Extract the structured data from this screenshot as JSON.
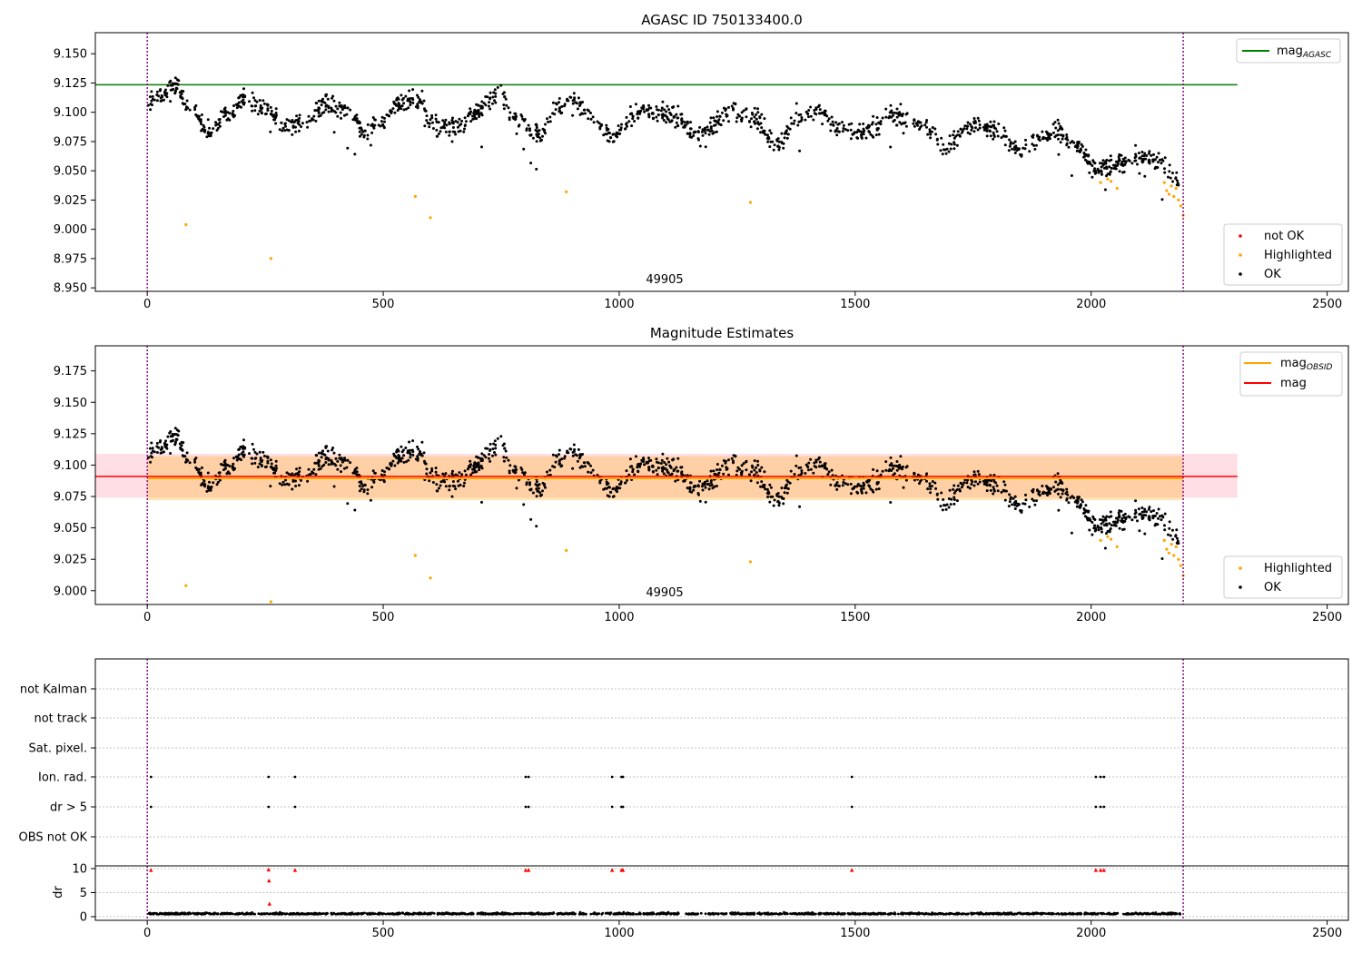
{
  "chart_data": [
    {
      "type": "scatter",
      "title": "AGASC ID 750133400.0",
      "xlim": [
        -110,
        2545
      ],
      "ylim": [
        8.947,
        9.168
      ],
      "xticks": [
        "0",
        "500",
        "1000",
        "1500",
        "2000",
        "2500"
      ],
      "yticks": [
        "9.150",
        "9.125",
        "9.100",
        "9.075",
        "9.050",
        "9.025",
        "9.000",
        "8.975",
        "8.950"
      ],
      "center_text": "49905",
      "vlines_x": [
        0,
        2195
      ],
      "hline": {
        "y": 9.1235,
        "x_range": [
          -110,
          2310
        ],
        "color": "#008000"
      },
      "legend_top": [
        {
          "label": "mag",
          "subscript": "AGASC",
          "color": "#008000",
          "marker": "line"
        }
      ],
      "legend_bottom": [
        {
          "label": "not OK",
          "color": "#ff0000",
          "marker": "dot"
        },
        {
          "label": "Highlighted",
          "color": "#ffa500",
          "marker": "dot"
        },
        {
          "label": "OK",
          "color": "#000000",
          "marker": "dot"
        }
      ],
      "series": [
        {
          "name": "OK",
          "color": "#000000",
          "trend": [
            [
              0,
              9.11
            ],
            [
              60,
              9.12
            ],
            [
              100,
              9.098
            ],
            [
              130,
              9.082
            ],
            [
              170,
              9.098
            ],
            [
              210,
              9.113
            ],
            [
              250,
              9.102
            ],
            [
              290,
              9.087
            ],
            [
              330,
              9.09
            ],
            [
              380,
              9.107
            ],
            [
              430,
              9.1
            ],
            [
              460,
              9.082
            ],
            [
              500,
              9.093
            ],
            [
              530,
              9.107
            ],
            [
              570,
              9.112
            ],
            [
              610,
              9.088
            ],
            [
              650,
              9.085
            ],
            [
              700,
              9.1
            ],
            [
              740,
              9.115
            ],
            [
              790,
              9.092
            ],
            [
              830,
              9.082
            ],
            [
              870,
              9.103
            ],
            [
              900,
              9.11
            ],
            [
              950,
              9.09
            ],
            [
              990,
              9.08
            ],
            [
              1040,
              9.1
            ],
            [
              1110,
              9.097
            ],
            [
              1170,
              9.08
            ],
            [
              1230,
              9.1
            ],
            [
              1290,
              9.095
            ],
            [
              1330,
              9.072
            ],
            [
              1380,
              9.097
            ],
            [
              1420,
              9.1
            ],
            [
              1470,
              9.086
            ],
            [
              1520,
              9.082
            ],
            [
              1580,
              9.097
            ],
            [
              1640,
              9.09
            ],
            [
              1690,
              9.07
            ],
            [
              1740,
              9.088
            ],
            [
              1800,
              9.086
            ],
            [
              1840,
              9.07
            ],
            [
              1880,
              9.075
            ],
            [
              1930,
              9.085
            ],
            [
              1970,
              9.072
            ],
            [
              2010,
              9.052
            ],
            [
              2060,
              9.057
            ],
            [
              2100,
              9.062
            ],
            [
              2140,
              9.06
            ],
            [
              2180,
              9.045
            ]
          ],
          "amplitude": 0.008,
          "n": 1500
        },
        {
          "name": "Highlighted",
          "color": "#ffa500",
          "points": [
            [
              82,
              9.004
            ],
            [
              262,
              8.975
            ],
            [
              568,
              9.028
            ],
            [
              600,
              9.01
            ],
            [
              888,
              9.032
            ],
            [
              1278,
              9.023
            ],
            [
              2020,
              9.04
            ],
            [
              2035,
              9.043
            ],
            [
              2042,
              9.041
            ],
            [
              2055,
              9.035
            ],
            [
              2155,
              9.04
            ],
            [
              2160,
              9.033
            ],
            [
              2165,
              9.03
            ],
            [
              2170,
              9.037
            ],
            [
              2175,
              9.028
            ],
            [
              2180,
              9.035
            ],
            [
              2185,
              9.025
            ],
            [
              2190,
              9.02
            ],
            [
              2195,
              9.012
            ]
          ]
        }
      ]
    },
    {
      "type": "scatter",
      "title": "Magnitude Estimates",
      "xlim": [
        -110,
        2545
      ],
      "ylim": [
        8.989,
        9.195
      ],
      "xticks": [
        "0",
        "500",
        "1000",
        "1500",
        "2000",
        "2500"
      ],
      "yticks": [
        "9.175",
        "9.150",
        "9.125",
        "9.100",
        "9.075",
        "9.050",
        "9.025",
        "9.000"
      ],
      "center_text": "49905",
      "vlines_x": [
        0,
        2195
      ],
      "band_pink": [
        9.074,
        9.109
      ],
      "band_orange": [
        9.072,
        9.107
      ],
      "hline_mag": 9.091,
      "hline_mag_obsid": 9.0895,
      "legend_top": [
        {
          "label": "mag",
          "subscript": "OBSID",
          "color": "#ffa500",
          "marker": "line"
        },
        {
          "label": "mag",
          "subscript": "",
          "color": "#ff0000",
          "marker": "line"
        }
      ],
      "legend_bottom": [
        {
          "label": "Highlighted",
          "color": "#ffa500",
          "marker": "dot"
        },
        {
          "label": "OK",
          "color": "#000000",
          "marker": "dot"
        }
      ]
    },
    {
      "type": "scatter",
      "flag_labels": [
        "not Kalman",
        "not track",
        "Sat. pixel.",
        "Ion. rad.",
        "dr > 5",
        "OBS not OK"
      ],
      "flag_events_x": {
        "Ion. rad.": [
          8,
          257,
          313,
          802,
          808,
          985,
          1005,
          1008,
          1493,
          2010,
          2020,
          2027
        ],
        "dr > 5": [
          8,
          257,
          313,
          802,
          808,
          985,
          1005,
          1008,
          1493,
          2010,
          2020,
          2027
        ]
      },
      "dr_ylabel": "dr",
      "dr_yticks": [
        "10",
        "5",
        "0"
      ],
      "dr_ylim": [
        -1,
        11
      ],
      "dr_red_points": [
        [
          8,
          9.7
        ],
        [
          257,
          9.8
        ],
        [
          258,
          7.5
        ],
        [
          259,
          2.7
        ],
        [
          313,
          9.7
        ],
        [
          802,
          9.7
        ],
        [
          808,
          9.7
        ],
        [
          985,
          9.7
        ],
        [
          1005,
          9.7
        ],
        [
          1008,
          9.7
        ],
        [
          1493,
          9.7
        ],
        [
          2010,
          9.7
        ],
        [
          2020,
          9.7
        ],
        [
          2027,
          9.7
        ]
      ],
      "xticks": [
        "0",
        "500",
        "1000",
        "1500",
        "2000",
        "2500"
      ],
      "xlim": [
        -110,
        2545
      ]
    }
  ]
}
